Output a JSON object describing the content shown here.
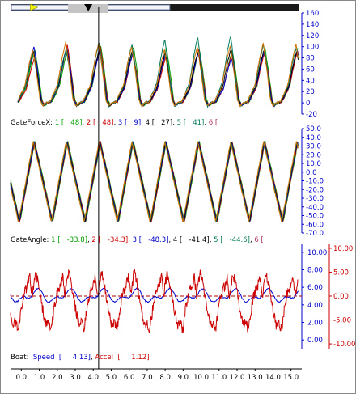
{
  "scrubber": {
    "track_color": "#1a1a1a",
    "window_color": "#c4c4c4",
    "play_marker_color": "#f2f200",
    "cursor_marker_color": "#000000",
    "window_start": 0.0,
    "window_end": 0.55,
    "play_position": 0.08,
    "cursor_position": 0.27
  },
  "cursor_time": 4.3,
  "captions": {
    "gate_force": {
      "label": "GateForceX:",
      "entries": [
        {
          "seat": "1",
          "value": "48",
          "color": "#00a000"
        },
        {
          "seat": "2",
          "value": "48",
          "color": "#cc0000"
        },
        {
          "seat": "3",
          "value": "9",
          "color": "#0000cc"
        },
        {
          "seat": "4",
          "value": "27",
          "color": "#000000"
        },
        {
          "seat": "5",
          "value": "41",
          "color": "#007a5a"
        },
        {
          "seat": "6",
          "value": "",
          "color": "#b03060"
        }
      ]
    },
    "gate_angle": {
      "label": "GateAngle:",
      "entries": [
        {
          "seat": "1",
          "value": "-33.8",
          "color": "#00a000"
        },
        {
          "seat": "2",
          "value": "-34.3",
          "color": "#cc0000"
        },
        {
          "seat": "3",
          "value": "-48.3",
          "color": "#0000cc"
        },
        {
          "seat": "4",
          "value": "-41.4",
          "color": "#000000"
        },
        {
          "seat": "5",
          "value": "-44.6",
          "color": "#007a5a"
        },
        {
          "seat": "6",
          "value": "",
          "color": "#b03060"
        }
      ]
    },
    "boat": {
      "label": "Boat:",
      "speed_label": "Speed",
      "speed_value": "4.13",
      "accel_label": "Accel",
      "accel_value": "1.12",
      "speed_color": "#0000cc",
      "accel_color": "#cc0000"
    }
  },
  "chart_data": [
    {
      "type": "line",
      "name": "gate-force-x",
      "xlim": [
        -0.6,
        15.6
      ],
      "ylim": [
        -20,
        160
      ],
      "yticks": [
        "-20",
        "0",
        "20",
        "40",
        "60",
        "80",
        "100",
        "120",
        "140",
        "160"
      ],
      "ytick_color": "#0000cc",
      "period": 1.83,
      "first_peak": 0.75,
      "profile": [
        [
          0,
          0
        ],
        [
          0.12,
          2
        ],
        [
          0.35,
          30
        ],
        [
          0.5,
          75
        ],
        [
          0.6,
          98
        ],
        [
          0.7,
          60
        ],
        [
          0.82,
          5
        ],
        [
          0.9,
          -5
        ],
        [
          1,
          0
        ]
      ],
      "series": [
        {
          "seat": "1",
          "color": "#00a000",
          "values": [
            96,
            95,
            104,
            100,
            98,
            96,
            94,
            96,
            98
          ]
        },
        {
          "seat": "2",
          "color": "#cc0000",
          "values": [
            80,
            104,
            100,
            90,
            82,
            95,
            88,
            90,
            92
          ]
        },
        {
          "seat": "3",
          "color": "#0000cc",
          "values": [
            100,
            100,
            92,
            88,
            86,
            90,
            80,
            92,
            95
          ]
        },
        {
          "seat": "4",
          "color": "#000000",
          "values": [
            92,
            98,
            96,
            94,
            90,
            92,
            96,
            94,
            92
          ]
        },
        {
          "seat": "5",
          "color": "#007a5a",
          "values": [
            88,
            96,
            108,
            104,
            114,
            118,
            120,
            104,
            100
          ]
        },
        {
          "seat": "6",
          "color": "#d07000",
          "values": [
            94,
            108,
            106,
            100,
            94,
            100,
            102,
            106,
            104
          ]
        }
      ]
    },
    {
      "type": "line",
      "name": "gate-angle",
      "xlim": [
        -0.6,
        15.6
      ],
      "ylim": [
        -70,
        50
      ],
      "yticks": [
        "-70.0",
        "-60.0",
        "-50.0",
        "-40.0",
        "-30.0",
        "-20.0",
        "-10.0",
        "0.0",
        "10.0",
        "20.0",
        "30.0",
        "40.0",
        "50.0"
      ],
      "ytick_color": "#0000cc",
      "period": 1.83,
      "first_peak": 0.75,
      "max": 35,
      "min": -57,
      "series": [
        {
          "seat": "1",
          "color": "#00a000"
        },
        {
          "seat": "2",
          "color": "#cc0000"
        },
        {
          "seat": "3",
          "color": "#0000cc"
        },
        {
          "seat": "4",
          "color": "#000000"
        },
        {
          "seat": "5",
          "color": "#007a5a"
        },
        {
          "seat": "6",
          "color": "#d07000"
        }
      ]
    },
    {
      "type": "line",
      "name": "boat",
      "xlim": [
        -0.6,
        15.6
      ],
      "left_axis": {
        "ylim": [
          -1,
          11
        ],
        "yticks": [
          "0.00",
          "2.00",
          "4.00",
          "6.00",
          "8.00",
          "10.00"
        ],
        "color": "#0000cc"
      },
      "right_axis": {
        "ylim": [
          -11,
          11
        ],
        "yticks": [
          "-10.00",
          "-5.00",
          "0.00",
          "5.00",
          "10.00"
        ],
        "color": "#cc0000"
      },
      "series": [
        {
          "name": "Speed",
          "axis": "left",
          "color": "#0000cc",
          "mean": 5.0,
          "amplitude": 0.9
        },
        {
          "name": "Accel",
          "axis": "right",
          "color": "#cc0000",
          "zero_line": "dashed"
        }
      ],
      "period": 1.83,
      "first_peak": 0.75
    }
  ],
  "x_axis": {
    "ticks": [
      "0.0",
      "1.0",
      "2.0",
      "3.0",
      "4.0",
      "5.0",
      "6.0",
      "7.0",
      "8.0",
      "9.0",
      "10.0",
      "11.0",
      "12.0",
      "13.0",
      "14.0",
      "15.0"
    ]
  }
}
